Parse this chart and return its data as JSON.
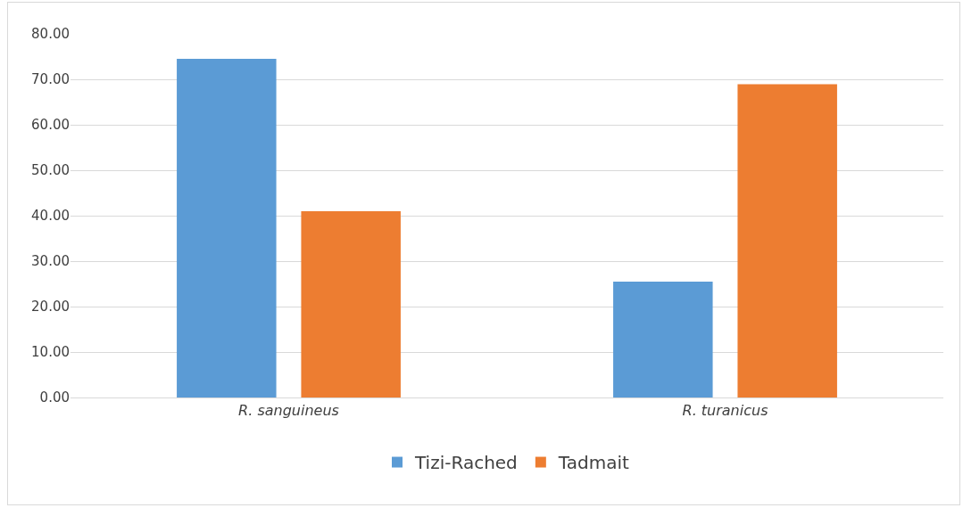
{
  "chart_data": {
    "type": "bar",
    "categories": [
      "R. sanguineus",
      "R. turanicus"
    ],
    "series": [
      {
        "name": "Tizi-Rached",
        "color": "#5b9bd5",
        "values": [
          74.5,
          25.5
        ]
      },
      {
        "name": "Tadmait",
        "color": "#ed7d31",
        "values": [
          41.0,
          68.9
        ]
      }
    ],
    "ylim": [
      0,
      80
    ],
    "yticks": [
      {
        "value": 0,
        "label": "0.00"
      },
      {
        "value": 10,
        "label": "10.00"
      },
      {
        "value": 20,
        "label": "20.00"
      },
      {
        "value": 30,
        "label": "30.00"
      },
      {
        "value": 40,
        "label": "40.00"
      },
      {
        "value": 50,
        "label": "50.00"
      },
      {
        "value": 60,
        "label": "60.00"
      },
      {
        "value": 70,
        "label": "70.00"
      },
      {
        "value": 80,
        "label": "80.00"
      }
    ],
    "grid": "y",
    "legend": "bottom"
  }
}
